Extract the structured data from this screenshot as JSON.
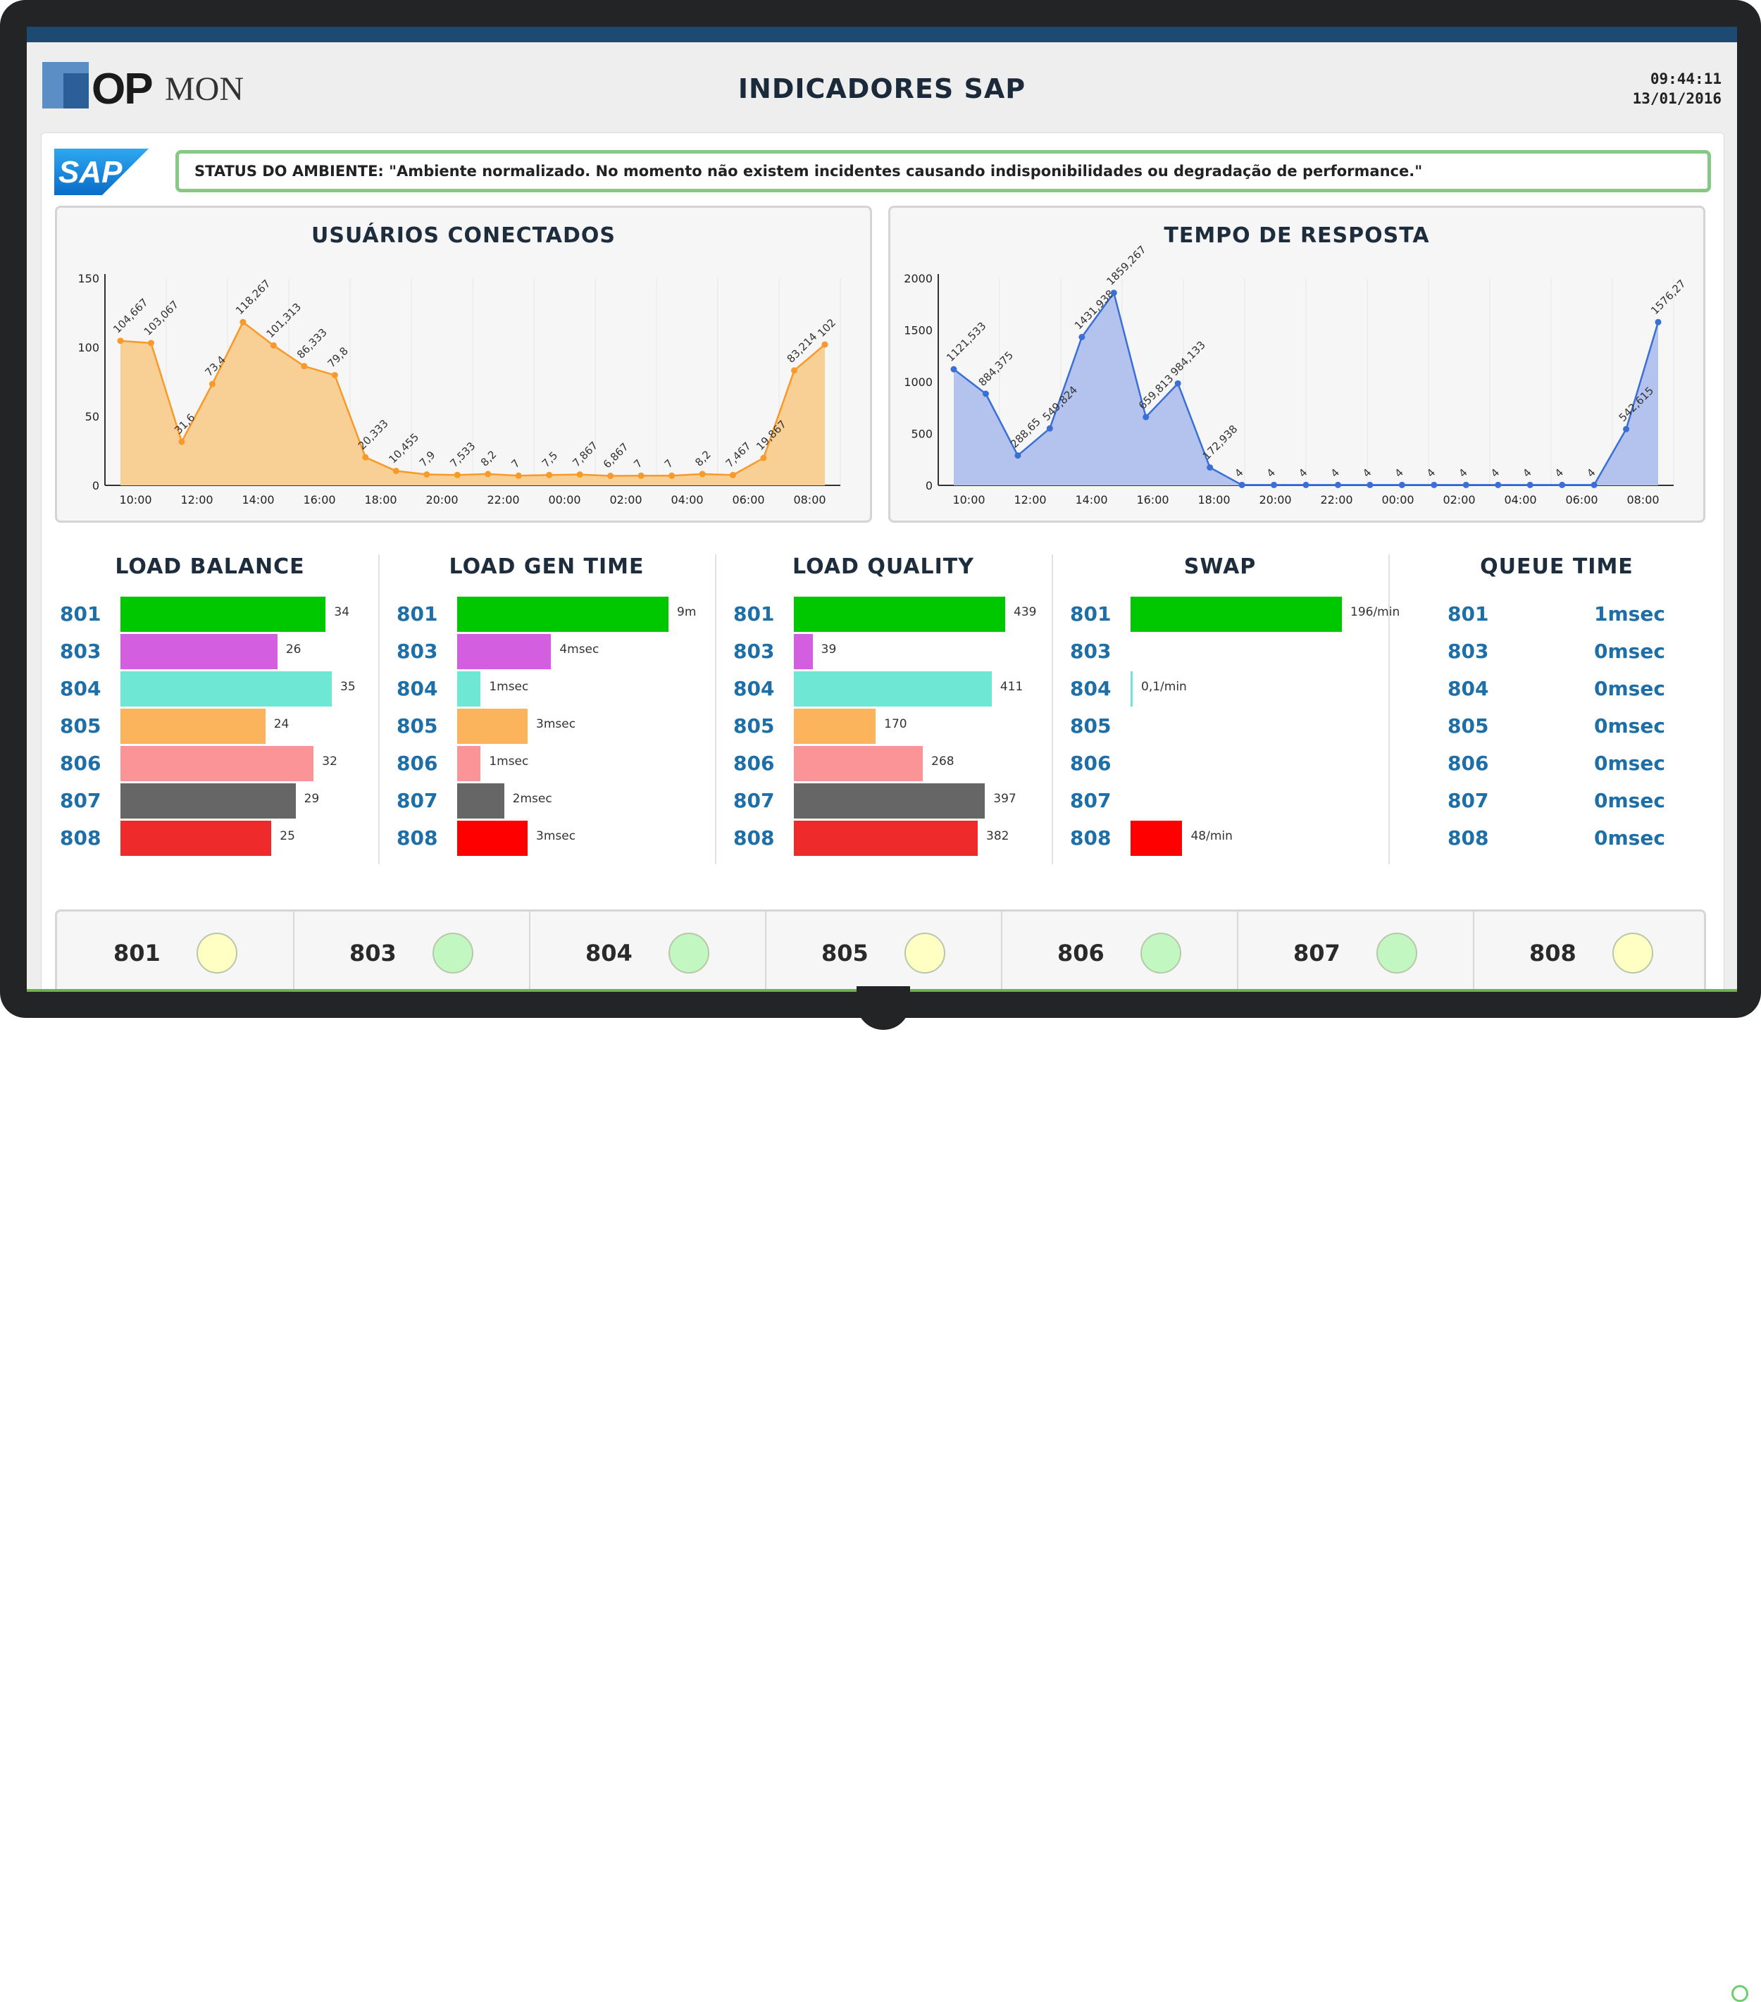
{
  "header": {
    "logo_op": "OP",
    "logo_mon": "MON",
    "title": "INDICADORES SAP",
    "time": "09:44:11",
    "date": "13/01/2016"
  },
  "sap_logo": "SAP",
  "status_text": "STATUS DO AMBIENTE: \"Ambiente normalizado. No momento não existem incidentes causando indisponibilidades ou degradação de performance.\"",
  "colors": {
    "topbar": "#1c4a73",
    "accent_label": "#1e6fa8",
    "status_border": "#86c986",
    "orange": "#f79a2a",
    "blue": "#3a6fd6"
  },
  "chart_data": [
    {
      "type": "area",
      "title": "USUÁRIOS CONECTADOS",
      "x_ticks": [
        "10:00",
        "12:00",
        "14:00",
        "16:00",
        "18:00",
        "20:00",
        "22:00",
        "00:00",
        "02:00",
        "04:00",
        "06:00",
        "08:00"
      ],
      "y_ticks": [
        "0",
        "50",
        "100",
        "150"
      ],
      "ylim": [
        0,
        150
      ],
      "labels": [
        "104,667",
        "103,067",
        "31,6",
        "73,4",
        "118,267",
        "101,313",
        "86,333",
        "79,8",
        "20,333",
        "10,455",
        "7,9",
        "7,533",
        "8,2",
        "7",
        "7,5",
        "7,867",
        "6,867",
        "7",
        "7",
        "8,2",
        "7,467",
        "19,867",
        "83,214",
        "102"
      ],
      "values": [
        104.667,
        103.067,
        31.6,
        73.4,
        118.267,
        101.313,
        86.333,
        79.8,
        20.333,
        10.455,
        7.9,
        7.533,
        8.2,
        7,
        7.5,
        7.867,
        6.867,
        7,
        7,
        8.2,
        7.467,
        19.867,
        83.214,
        102
      ],
      "fill": "#f8cf95",
      "line": "#f79a2a"
    },
    {
      "type": "area",
      "title": "TEMPO DE RESPOSTA",
      "x_ticks": [
        "10:00",
        "12:00",
        "14:00",
        "16:00",
        "18:00",
        "20:00",
        "22:00",
        "00:00",
        "02:00",
        "04:00",
        "06:00",
        "08:00"
      ],
      "y_ticks": [
        "0",
        "500",
        "1000",
        "1500",
        "2000"
      ],
      "ylim": [
        0,
        2000
      ],
      "labels": [
        "1121,533",
        "884,375",
        "288,65",
        "549,824",
        "1431,938",
        "1859,267",
        "659,813",
        "984,133",
        "172,938",
        "4",
        "4",
        "4",
        "4",
        "4",
        "4",
        "4",
        "4",
        "4",
        "4",
        "4",
        "4",
        "542,615",
        "1576,27"
      ],
      "values": [
        1121.533,
        884.375,
        288.65,
        549.824,
        1431.938,
        1859.267,
        659.813,
        984.133,
        172.938,
        4,
        4,
        4,
        4,
        4,
        4,
        4,
        4,
        4,
        4,
        4,
        4,
        542.615,
        1576.27
      ],
      "fill": "#b3c3ee",
      "line": "#3a6fd6"
    }
  ],
  "panels": [
    {
      "title": "LOAD BALANCE",
      "rows": [
        {
          "label": "801",
          "value": "34",
          "amount": 34,
          "color": "#00c800"
        },
        {
          "label": "803",
          "value": "26",
          "amount": 26,
          "color": "#d45ee0"
        },
        {
          "label": "804",
          "value": "35",
          "amount": 35,
          "color": "#6ee8d4"
        },
        {
          "label": "805",
          "value": "24",
          "amount": 24,
          "color": "#fbb45c"
        },
        {
          "label": "806",
          "value": "32",
          "amount": 32,
          "color": "#fb9496"
        },
        {
          "label": "807",
          "value": "29",
          "amount": 29,
          "color": "#666666"
        },
        {
          "label": "808",
          "value": "25",
          "amount": 25,
          "color": "#ee2a2a"
        }
      ]
    },
    {
      "title": "LOAD GEN TIME",
      "rows": [
        {
          "label": "801",
          "value": "9m",
          "amount": 9,
          "color": "#00c800"
        },
        {
          "label": "803",
          "value": "4msec",
          "amount": 4,
          "color": "#d45ee0"
        },
        {
          "label": "804",
          "value": "1msec",
          "amount": 1,
          "color": "#6ee8d4"
        },
        {
          "label": "805",
          "value": "3msec",
          "amount": 3,
          "color": "#fbb45c"
        },
        {
          "label": "806",
          "value": "1msec",
          "amount": 1,
          "color": "#fb9496"
        },
        {
          "label": "807",
          "value": "2msec",
          "amount": 2,
          "color": "#666666"
        },
        {
          "label": "808",
          "value": "3msec",
          "amount": 3,
          "color": "#ff0000"
        }
      ]
    },
    {
      "title": "LOAD QUALITY",
      "rows": [
        {
          "label": "801",
          "value": "439",
          "amount": 439,
          "color": "#00c800"
        },
        {
          "label": "803",
          "value": "39",
          "amount": 39,
          "color": "#d45ee0"
        },
        {
          "label": "804",
          "value": "411",
          "amount": 411,
          "color": "#6ee8d4"
        },
        {
          "label": "805",
          "value": "170",
          "amount": 170,
          "color": "#fbb45c"
        },
        {
          "label": "806",
          "value": "268",
          "amount": 268,
          "color": "#fb9496"
        },
        {
          "label": "807",
          "value": "397",
          "amount": 397,
          "color": "#666666"
        },
        {
          "label": "808",
          "value": "382",
          "amount": 382,
          "color": "#ee2a2a"
        }
      ]
    },
    {
      "title": "SWAP",
      "rows": [
        {
          "label": "801",
          "value": "196/min",
          "amount": 196,
          "color": "#00c800"
        },
        {
          "label": "803",
          "value": "",
          "amount": 0,
          "color": "#d45ee0"
        },
        {
          "label": "804",
          "value": "0,1/min",
          "amount": 0.1,
          "color": "#6ee8d4"
        },
        {
          "label": "805",
          "value": "",
          "amount": 0,
          "color": "#fbb45c"
        },
        {
          "label": "806",
          "value": "",
          "amount": 0,
          "color": "#fb9496"
        },
        {
          "label": "807",
          "value": "",
          "amount": 0,
          "color": "#666666"
        },
        {
          "label": "808",
          "value": "48/min",
          "amount": 48,
          "color": "#ff0000"
        }
      ]
    }
  ],
  "queue": {
    "title": "QUEUE TIME",
    "rows": [
      {
        "label": "801",
        "value": "1msec"
      },
      {
        "label": "803",
        "value": "0msec"
      },
      {
        "label": "804",
        "value": "0msec"
      },
      {
        "label": "805",
        "value": "0msec"
      },
      {
        "label": "806",
        "value": "0msec"
      },
      {
        "label": "807",
        "value": "0msec"
      },
      {
        "label": "808",
        "value": "0msec"
      }
    ]
  },
  "servers": [
    {
      "name": "801",
      "status": "warning",
      "color": "#ffffc4"
    },
    {
      "name": "803",
      "status": "ok",
      "color": "#c2f7c2"
    },
    {
      "name": "804",
      "status": "ok",
      "color": "#c2f7c2"
    },
    {
      "name": "805",
      "status": "warning",
      "color": "#ffffc4"
    },
    {
      "name": "806",
      "status": "ok",
      "color": "#c2f7c2"
    },
    {
      "name": "807",
      "status": "ok",
      "color": "#c2f7c2"
    },
    {
      "name": "808",
      "status": "warning",
      "color": "#ffffc4"
    }
  ]
}
